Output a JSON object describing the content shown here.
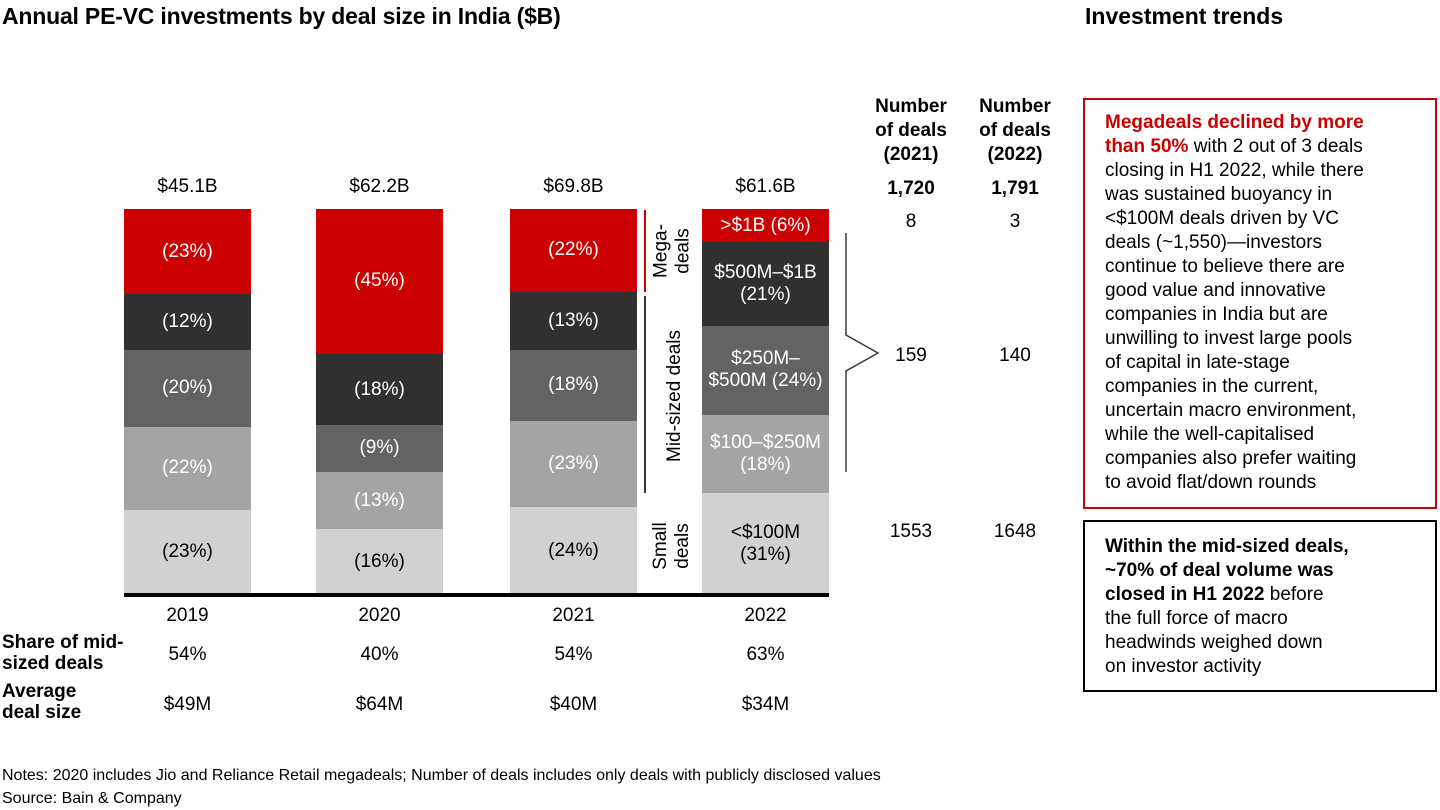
{
  "title": "Annual PE-VC investments by deal size in India ($B)",
  "right_title": "Investment trends",
  "chart_data": {
    "type": "bar",
    "subtype": "stacked-100pct",
    "title": "Annual PE-VC investments by deal size in India ($B)",
    "categories": [
      "2019",
      "2020",
      "2021",
      "2022"
    ],
    "totals_display": [
      "$45.1B",
      "$62.2B",
      "$69.8B",
      "$61.6B"
    ],
    "totals_billions": [
      45.1,
      62.2,
      69.8,
      61.6
    ],
    "series": [
      {
        "name": ">$1B",
        "color": "#cc0000",
        "text_color": "#ffffff",
        "values_pct": [
          23,
          45,
          22,
          6
        ]
      },
      {
        "name": "$500M–$1B",
        "color": "#303030",
        "text_color": "#ffffff",
        "values_pct": [
          12,
          18,
          13,
          21
        ]
      },
      {
        "name": "$250M–$500M",
        "color": "#636363",
        "text_color": "#ffffff",
        "values_pct": [
          20,
          9,
          18,
          24
        ]
      },
      {
        "name": "$100–$250M",
        "color": "#a4a4a4",
        "text_color": "#ffffff",
        "values_pct": [
          22,
          13,
          23,
          18
        ]
      },
      {
        "name": "<$100M",
        "color": "#d1d1d1",
        "text_color": "#000000",
        "values_pct": [
          23,
          16,
          24,
          31
        ]
      }
    ],
    "bar_labels": [
      [
        "(23%)",
        "(12%)",
        "(20%)",
        "(22%)",
        "(23%)"
      ],
      [
        "(45%)",
        "(18%)",
        "(9%)",
        "(13%)",
        "(16%)"
      ],
      [
        "(22%)",
        "(13%)",
        "(18%)",
        "(23%)",
        "(24%)"
      ],
      [
        ">$1B (6%)",
        "$500M–$1B\n(21%)",
        "$250M–\n$500M (24%)",
        "$100–$250M\n(18%)",
        "<$100M\n(31%)"
      ]
    ],
    "legend_position": "none",
    "grid": false
  },
  "group_labels": {
    "mega": "Mega-\ndeals",
    "mid": "Mid-sized deals",
    "small": "Small\ndeals"
  },
  "deal_counts": {
    "headers": [
      "Number\nof deals\n(2021)",
      "Number\nof deals\n(2022)"
    ],
    "rows": [
      {
        "values": [
          "1,720",
          "1,791"
        ],
        "bold": true
      },
      {
        "values": [
          "8",
          "3"
        ],
        "bold": false
      },
      {
        "values": [
          "159",
          "140"
        ],
        "bold": false
      },
      {
        "values": [
          "1553",
          "1648"
        ],
        "bold": false
      }
    ]
  },
  "stats": {
    "share_label": "Share of mid-\nsized deals",
    "share_values": [
      "54%",
      "40%",
      "54%",
      "63%"
    ],
    "avg_label": "Average\ndeal size",
    "avg_values": [
      "$49M",
      "$64M",
      "$40M",
      "$34M"
    ]
  },
  "callouts": {
    "box1_bold": "Megadeals declined by more\nthan 50%",
    "box1_rest": " with 2 out of 3 deals\nclosing in H1 2022, while there\nwas sustained buoyancy in\n<$100M deals driven by VC\ndeals (~1,550)—investors\ncontinue to believe there are\ngood value and innovative\ncompanies in India but are\nunwilling to invest large pools\nof capital in late-stage\ncompanies in the current,\nuncertain macro environment,\nwhile the well-capitalised\ncompanies also prefer waiting\nto avoid flat/down rounds",
    "box1_accent": "#cc0000",
    "box2_bold": "Within the mid-sized deals,\n~70% of deal volume was\nclosed in H1 2022",
    "box2_rest": " before\nthe full force of macro\nheadwinds weighed down\non investor activity"
  },
  "footnotes": {
    "notes": "Notes: 2020 includes Jio and Reliance Retail megadeals; Number of deals includes only deals with publicly disclosed values",
    "source": "Source: Bain & Company"
  }
}
